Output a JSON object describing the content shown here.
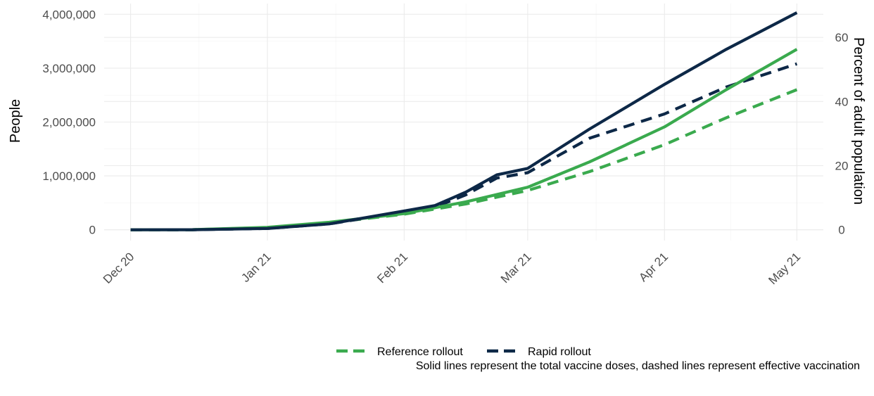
{
  "chart_data": {
    "type": "line",
    "y_left_label": "People",
    "y_right_label": "Percent of adult population",
    "x_ticks": [
      "Dec 20",
      "Jan 21",
      "Feb 21",
      "Mar 21",
      "Apr 21",
      "May 21"
    ],
    "x_tick_dates": [
      "2020-12-01",
      "2021-01-01",
      "2021-02-01",
      "2021-03-01",
      "2021-04-01",
      "2021-05-01"
    ],
    "x_range": [
      "2020-11-25",
      "2021-05-07"
    ],
    "y_left_ticks": [
      "0",
      "1,000,000",
      "2,000,000",
      "3,000,000",
      "4,000,000"
    ],
    "y_left_tick_values": [
      0,
      1000000,
      2000000,
      3000000,
      4000000
    ],
    "y_left_range": [
      -200000,
      4200000
    ],
    "y_right_ticks": [
      "0",
      "20",
      "40",
      "60"
    ],
    "y_right_tick_values": [
      0,
      20,
      40,
      60
    ],
    "y_right_per_left_unit": 1.68e-05,
    "grid": true,
    "legend_position": "bottom",
    "legend": [
      {
        "label": "Reference rollout",
        "color": "#3aaa4e"
      },
      {
        "label": "Rapid rollout",
        "color": "#0d2847"
      }
    ],
    "caption": "Solid lines represent the total vaccine doses, dashed lines represent effective vaccination",
    "series": [
      {
        "name": "Reference rollout",
        "linetype": "solid",
        "color": "#3aaa4e",
        "points": [
          [
            "2020-12-01",
            0
          ],
          [
            "2020-12-15",
            2000
          ],
          [
            "2021-01-01",
            45000
          ],
          [
            "2021-01-15",
            140000
          ],
          [
            "2021-02-01",
            300000
          ],
          [
            "2021-02-15",
            520000
          ],
          [
            "2021-03-01",
            790000
          ],
          [
            "2021-03-15",
            1260000
          ],
          [
            "2021-04-01",
            1910000
          ],
          [
            "2021-04-15",
            2600000
          ],
          [
            "2021-05-01",
            3350000
          ]
        ]
      },
      {
        "name": "Reference rollout",
        "linetype": "dashed",
        "color": "#3aaa4e",
        "points": [
          [
            "2020-12-01",
            0
          ],
          [
            "2020-12-15",
            1500
          ],
          [
            "2021-01-01",
            40000
          ],
          [
            "2021-01-15",
            130000
          ],
          [
            "2021-02-01",
            290000
          ],
          [
            "2021-02-15",
            480000
          ],
          [
            "2021-03-01",
            730000
          ],
          [
            "2021-03-15",
            1080000
          ],
          [
            "2021-04-01",
            1580000
          ],
          [
            "2021-04-15",
            2080000
          ],
          [
            "2021-05-01",
            2600000
          ]
        ]
      },
      {
        "name": "Rapid rollout",
        "linetype": "solid",
        "color": "#0d2847",
        "points": [
          [
            "2020-12-01",
            0
          ],
          [
            "2020-12-15",
            1000
          ],
          [
            "2021-01-01",
            25000
          ],
          [
            "2021-01-15",
            110000
          ],
          [
            "2021-02-01",
            350000
          ],
          [
            "2021-02-08",
            450000
          ],
          [
            "2021-02-15",
            700000
          ],
          [
            "2021-02-22",
            1020000
          ],
          [
            "2021-03-01",
            1140000
          ],
          [
            "2021-03-15",
            1870000
          ],
          [
            "2021-04-01",
            2700000
          ],
          [
            "2021-04-15",
            3350000
          ],
          [
            "2021-05-01",
            4030000
          ]
        ]
      },
      {
        "name": "Rapid rollout",
        "linetype": "dashed",
        "color": "#0d2847",
        "points": [
          [
            "2020-12-01",
            0
          ],
          [
            "2020-12-15",
            1000
          ],
          [
            "2021-01-01",
            25000
          ],
          [
            "2021-01-15",
            110000
          ],
          [
            "2021-02-01",
            330000
          ],
          [
            "2021-02-08",
            420000
          ],
          [
            "2021-02-15",
            650000
          ],
          [
            "2021-02-22",
            960000
          ],
          [
            "2021-03-01",
            1060000
          ],
          [
            "2021-03-15",
            1700000
          ],
          [
            "2021-04-01",
            2150000
          ],
          [
            "2021-04-15",
            2650000
          ],
          [
            "2021-05-01",
            3080000
          ]
        ]
      }
    ]
  }
}
